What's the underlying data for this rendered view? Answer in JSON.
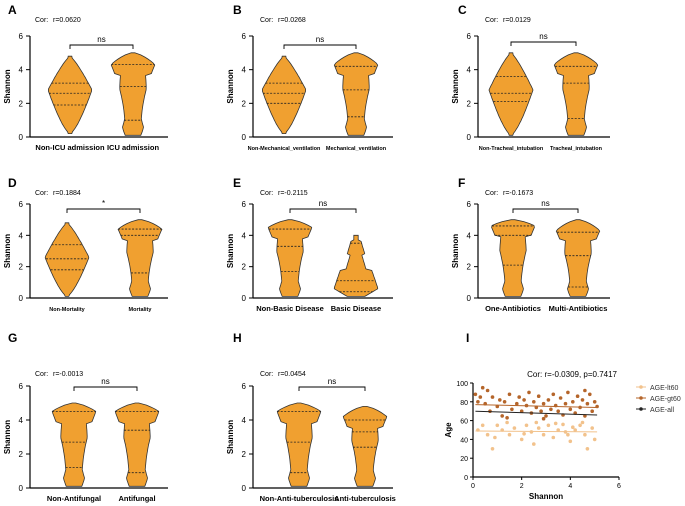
{
  "colors": {
    "violin_fill": "#F0A030",
    "violin_stroke": "#333333",
    "axis": "#000000",
    "lt60": "#F2C28C",
    "gt60": "#B5652A",
    "all": "#222222"
  },
  "chart_data": [
    {
      "panel": "A",
      "type": "violin",
      "cor_label": "Cor:",
      "cor_value": "r=0.0620",
      "ylabel": "Shannon",
      "yticks": [
        "0",
        "2",
        "4",
        "6"
      ],
      "ylim": [
        0,
        6
      ],
      "categories": [
        "Non-ICU admission",
        "ICU admission"
      ],
      "sig": "ns",
      "violins": [
        {
          "min": 0.2,
          "max": 4.8,
          "q1": 1.9,
          "median": 2.6,
          "q3": 3.2,
          "wide_at": 2.8,
          "shape": "diamond"
        },
        {
          "min": 0.1,
          "max": 5.0,
          "q1": 1.0,
          "median": 3.0,
          "q3": 4.3,
          "wide_at": 4.3,
          "shape": "top-heavy"
        }
      ]
    },
    {
      "panel": "B",
      "type": "violin",
      "cor_label": "Cor:",
      "cor_value": "r=0.0268",
      "ylabel": "Shannon",
      "yticks": [
        "0",
        "2",
        "4",
        "6"
      ],
      "ylim": [
        0,
        6
      ],
      "categories": [
        "Non-Mechanical_ventilation",
        "Mechanical_ventilation"
      ],
      "sig": "ns",
      "violins": [
        {
          "min": 0.2,
          "max": 4.8,
          "q1": 2.0,
          "median": 2.6,
          "q3": 3.2,
          "wide_at": 2.8,
          "shape": "diamond"
        },
        {
          "min": 0.1,
          "max": 5.0,
          "q1": 1.2,
          "median": 2.8,
          "q3": 4.2,
          "wide_at": 4.3,
          "shape": "top-heavy"
        }
      ]
    },
    {
      "panel": "C",
      "type": "violin",
      "cor_label": "Cor:",
      "cor_value": "r=0.0129",
      "ylabel": "Shannon",
      "yticks": [
        "0",
        "2",
        "4",
        "6"
      ],
      "ylim": [
        0,
        6
      ],
      "categories": [
        "Non-Tracheal_intubation",
        "Tracheal_intubation"
      ],
      "sig": "ns",
      "violins": [
        {
          "min": 0.1,
          "max": 5.0,
          "q1": 2.1,
          "median": 2.6,
          "q3": 3.6,
          "wide_at": 2.8,
          "shape": "diamond"
        },
        {
          "min": 0.1,
          "max": 5.0,
          "q1": 1.1,
          "median": 3.2,
          "q3": 4.2,
          "wide_at": 4.3,
          "shape": "top-heavy"
        }
      ]
    },
    {
      "panel": "D",
      "type": "violin",
      "cor_label": "Cor:",
      "cor_value": "r=0.1884",
      "ylabel": "Shannon",
      "yticks": [
        "0",
        "2",
        "4",
        "6"
      ],
      "ylim": [
        0,
        6
      ],
      "categories": [
        "Non-Mortality",
        "Mortality"
      ],
      "sig": "*",
      "violins": [
        {
          "min": 0.1,
          "max": 4.8,
          "q1": 1.8,
          "median": 2.5,
          "q3": 3.4,
          "wide_at": 2.6,
          "shape": "diamond"
        },
        {
          "min": 0.1,
          "max": 5.0,
          "q1": 1.6,
          "median": 4.0,
          "q3": 4.4,
          "wide_at": 4.4,
          "shape": "top-heavy"
        }
      ]
    },
    {
      "panel": "E",
      "type": "violin",
      "cor_label": "Cor:",
      "cor_value": "r=-0.2115",
      "ylabel": "Shannon",
      "yticks": [
        "0",
        "2",
        "4",
        "6"
      ],
      "ylim": [
        0,
        6
      ],
      "categories": [
        "Non-Basic Disease",
        "Basic Disease"
      ],
      "sig": "ns",
      "violins": [
        {
          "min": 0.1,
          "max": 5.0,
          "q1": 1.7,
          "median": 3.3,
          "q3": 4.4,
          "wide_at": 4.5,
          "shape": "top-heavy"
        },
        {
          "min": 0.1,
          "max": 4.0,
          "q1": 0.4,
          "median": 1.1,
          "q3": 3.5,
          "wide_at": 0.6,
          "shape": "bottom-heavy"
        }
      ]
    },
    {
      "panel": "F",
      "type": "violin",
      "cor_label": "Cor:",
      "cor_value": "r=-0.1673",
      "ylabel": "Shannon",
      "yticks": [
        "0",
        "2",
        "4",
        "6"
      ],
      "ylim": [
        0,
        6
      ],
      "categories": [
        "One-Antibiotics",
        "Multi-Antibiotics"
      ],
      "sig": "ns",
      "violins": [
        {
          "min": 0.1,
          "max": 5.0,
          "q1": 2.1,
          "median": 4.0,
          "q3": 4.6,
          "wide_at": 4.6,
          "shape": "top-heavy"
        },
        {
          "min": 0.1,
          "max": 5.0,
          "q1": 0.7,
          "median": 2.7,
          "q3": 4.2,
          "wide_at": 4.3,
          "shape": "top-heavy"
        }
      ]
    },
    {
      "panel": "G",
      "type": "violin",
      "cor_label": "Cor:",
      "cor_value": "r=-0.0013",
      "ylabel": "Shannon",
      "yticks": [
        "0",
        "2",
        "4",
        "6"
      ],
      "ylim": [
        0,
        6
      ],
      "categories": [
        "Non-Antifungal",
        "Antifungal"
      ],
      "sig": "ns",
      "violins": [
        {
          "min": 0.1,
          "max": 5.0,
          "q1": 1.2,
          "median": 2.7,
          "q3": 4.5,
          "wide_at": 4.5,
          "shape": "top-heavy"
        },
        {
          "min": 0.1,
          "max": 5.0,
          "q1": 0.9,
          "median": 3.4,
          "q3": 4.5,
          "wide_at": 4.5,
          "shape": "top-heavy"
        }
      ]
    },
    {
      "panel": "H",
      "type": "violin",
      "cor_label": "Cor:",
      "cor_value": "r=0.0454",
      "ylabel": "Shannon",
      "yticks": [
        "0",
        "2",
        "4",
        "6"
      ],
      "ylim": [
        0,
        6
      ],
      "categories": [
        "Non-Anti-tuberculosis",
        "Anti-tuberculosis"
      ],
      "sig": "ns",
      "violins": [
        {
          "min": 0.1,
          "max": 5.0,
          "q1": 0.9,
          "median": 2.7,
          "q3": 4.5,
          "wide_at": 4.5,
          "shape": "top-heavy"
        },
        {
          "min": 0.1,
          "max": 4.8,
          "q1": 2.4,
          "median": 3.3,
          "q3": 4.0,
          "wide_at": 4.2,
          "shape": "top-heavy"
        }
      ]
    },
    {
      "panel": "I",
      "type": "scatter",
      "title": "Cor: r=-0.0309, p=0.7417",
      "xlabel": "Shannon",
      "ylabel": "Age",
      "xlim": [
        0,
        6
      ],
      "ylim": [
        0,
        100
      ],
      "xticks": [
        "0",
        "2",
        "4",
        "6"
      ],
      "yticks": [
        "0",
        "20",
        "40",
        "60",
        "80",
        "100"
      ],
      "legend": [
        "AGE-lt60",
        "AGE-gt60",
        "AGE-all"
      ],
      "legend_position": "right",
      "series": [
        {
          "name": "AGE-lt60",
          "fit": [
            [
              0.1,
              49
            ],
            [
              5.1,
              48
            ]
          ],
          "points": [
            [
              0.4,
              55
            ],
            [
              0.6,
              45
            ],
            [
              0.8,
              30
            ],
            [
              1.0,
              55
            ],
            [
              1.2,
              50
            ],
            [
              1.5,
              45
            ],
            [
              1.7,
              52
            ],
            [
              2.0,
              40
            ],
            [
              2.2,
              55
            ],
            [
              2.4,
              48
            ],
            [
              2.5,
              35
            ],
            [
              2.7,
              52
            ],
            [
              2.9,
              45
            ],
            [
              3.1,
              55
            ],
            [
              3.3,
              42
            ],
            [
              3.5,
              50
            ],
            [
              3.7,
              56
            ],
            [
              3.9,
              45
            ],
            [
              4.0,
              38
            ],
            [
              4.2,
              50
            ],
            [
              4.4,
              55
            ],
            [
              4.6,
              45
            ],
            [
              4.7,
              30
            ],
            [
              4.9,
              52
            ],
            [
              5.0,
              40
            ],
            [
              0.2,
              50
            ],
            [
              1.4,
              58
            ],
            [
              2.6,
              58
            ],
            [
              3.8,
              48
            ],
            [
              4.5,
              58
            ],
            [
              0.9,
              42
            ],
            [
              2.1,
              46
            ],
            [
              3.4,
              57
            ],
            [
              4.1,
              53
            ]
          ]
        },
        {
          "name": "AGE-gt60",
          "fit": [
            [
              0.1,
              77
            ],
            [
              5.1,
              74
            ]
          ],
          "points": [
            [
              0.1,
              88
            ],
            [
              0.2,
              80
            ],
            [
              0.3,
              85
            ],
            [
              0.5,
              78
            ],
            [
              0.6,
              92
            ],
            [
              0.7,
              70
            ],
            [
              0.8,
              85
            ],
            [
              1.0,
              75
            ],
            [
              1.1,
              82
            ],
            [
              1.2,
              65
            ],
            [
              1.3,
              80
            ],
            [
              1.5,
              88
            ],
            [
              1.6,
              72
            ],
            [
              1.8,
              78
            ],
            [
              1.9,
              85
            ],
            [
              2.0,
              70
            ],
            [
              2.1,
              82
            ],
            [
              2.2,
              76
            ],
            [
              2.3,
              90
            ],
            [
              2.4,
              68
            ],
            [
              2.5,
              80
            ],
            [
              2.6,
              74
            ],
            [
              2.7,
              86
            ],
            [
              2.8,
              70
            ],
            [
              2.9,
              78
            ],
            [
              3.0,
              65
            ],
            [
              3.1,
              82
            ],
            [
              3.2,
              72
            ],
            [
              3.3,
              88
            ],
            [
              3.4,
              76
            ],
            [
              3.5,
              70
            ],
            [
              3.6,
              84
            ],
            [
              3.7,
              66
            ],
            [
              3.8,
              78
            ],
            [
              3.9,
              90
            ],
            [
              4.0,
              72
            ],
            [
              4.1,
              80
            ],
            [
              4.2,
              68
            ],
            [
              4.3,
              86
            ],
            [
              4.4,
              74
            ],
            [
              4.5,
              82
            ],
            [
              4.6,
              65
            ],
            [
              4.7,
              78
            ],
            [
              4.8,
              88
            ],
            [
              4.9,
              70
            ],
            [
              5.0,
              80
            ],
            [
              5.1,
              75
            ],
            [
              0.4,
              95
            ],
            [
              1.4,
              63
            ],
            [
              2.9,
              62
            ],
            [
              4.6,
              92
            ]
          ]
        },
        {
          "name": "AGE-all",
          "fit": [
            [
              0.1,
              70
            ],
            [
              5.1,
              66
            ]
          ],
          "points": []
        }
      ]
    }
  ]
}
